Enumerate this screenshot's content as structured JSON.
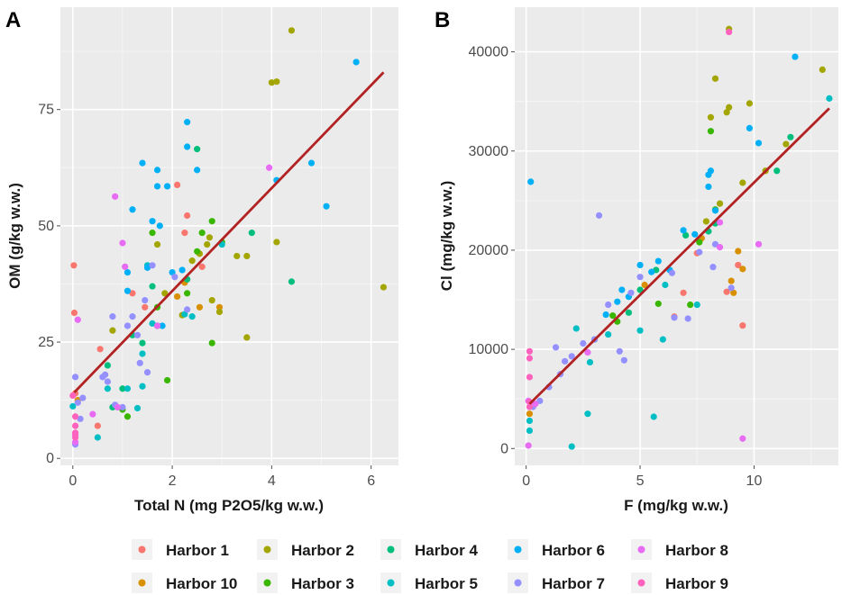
{
  "colors": {
    "Harbor 1": "#F8766D",
    "Harbor 10": "#D89000",
    "Harbor 2": "#A3A500",
    "Harbor 3": "#39B600",
    "Harbor 4": "#00BF7D",
    "Harbor 5": "#00BFC4",
    "Harbor 6": "#00B0F6",
    "Harbor 7": "#9590FF",
    "Harbor 8": "#E76BF3",
    "Harbor 9": "#FF62BC",
    "regression_line": "#B22222"
  },
  "legend": {
    "entries": [
      "Harbor 1",
      "Harbor 2",
      "Harbor 4",
      "Harbor 6",
      "Harbor 8",
      "Harbor 10",
      "Harbor 3",
      "Harbor 5",
      "Harbor 7",
      "Harbor 9"
    ]
  },
  "chart_data": [
    {
      "panel": "A",
      "type": "scatter",
      "xlabel": "Total N (mg P2O5/kg w.w.)",
      "ylabel": "OM (g/kg w.w.)",
      "xlim": [
        -0.25,
        6.55
      ],
      "ylim": [
        -1.5,
        97
      ],
      "xticks": [
        0,
        2,
        4,
        6
      ],
      "yticks": [
        0,
        25,
        50,
        75
      ],
      "grid": true,
      "regression": {
        "x": [
          0.03,
          6.25
        ],
        "y": [
          14.2,
          83
        ]
      },
      "series": [
        {
          "name": "Harbor 1",
          "points": [
            [
              0.02,
              41.5
            ],
            [
              0.03,
              31.3
            ],
            [
              0.05,
              14.0
            ],
            [
              0.55,
              23.5
            ],
            [
              1.2,
              35.5
            ],
            [
              1.45,
              32.5
            ],
            [
              2.1,
              58.8
            ],
            [
              2.25,
              48.5
            ],
            [
              2.3,
              52.2
            ],
            [
              2.6,
              41.2
            ],
            [
              0.5,
              7.0
            ]
          ]
        },
        {
          "name": "Harbor 10",
          "points": [
            [
              0.1,
              12.5
            ],
            [
              2.1,
              34.8
            ],
            [
              2.25,
              37.8
            ],
            [
              2.55,
              32.5
            ],
            [
              2.95,
              32.5
            ]
          ]
        },
        {
          "name": "Harbor 2",
          "points": [
            [
              0.8,
              27.5
            ],
            [
              1.7,
              46.0
            ],
            [
              1.85,
              35.5
            ],
            [
              2.2,
              30.8
            ],
            [
              2.4,
              42.5
            ],
            [
              2.55,
              44.0
            ],
            [
              2.7,
              46.0
            ],
            [
              2.75,
              47.5
            ],
            [
              2.8,
              34.0
            ],
            [
              2.95,
              31.5
            ],
            [
              3.3,
              43.5
            ],
            [
              3.5,
              43.5
            ],
            [
              3.5,
              26.0
            ],
            [
              4.0,
              80.8
            ],
            [
              4.1,
              81.0
            ],
            [
              4.1,
              46.5
            ],
            [
              4.4,
              92.0
            ],
            [
              6.25,
              36.8
            ]
          ]
        },
        {
          "name": "Harbor 3",
          "points": [
            [
              1.0,
              10.5
            ],
            [
              1.1,
              9.0
            ],
            [
              1.6,
              48.5
            ],
            [
              1.7,
              32.5
            ],
            [
              1.9,
              16.8
            ],
            [
              2.3,
              35.5
            ],
            [
              2.5,
              44.5
            ],
            [
              2.6,
              48.5
            ],
            [
              2.8,
              51.0
            ],
            [
              2.8,
              24.8
            ],
            [
              3.0,
              46.5
            ]
          ]
        },
        {
          "name": "Harbor 4",
          "points": [
            [
              0.7,
              20.0
            ],
            [
              0.8,
              11.0
            ],
            [
              1.0,
              15.0
            ],
            [
              1.2,
              26.5
            ],
            [
              1.4,
              24.8
            ],
            [
              1.6,
              37.0
            ],
            [
              1.7,
              28.5
            ],
            [
              2.3,
              38.5
            ],
            [
              2.5,
              66.5
            ],
            [
              3.6,
              48.5
            ],
            [
              4.4,
              38.0
            ]
          ]
        },
        {
          "name": "Harbor 5",
          "points": [
            [
              0.0,
              11.2
            ],
            [
              0.5,
              4.5
            ],
            [
              0.7,
              15.0
            ],
            [
              1.1,
              15.0
            ],
            [
              1.3,
              10.8
            ],
            [
              1.4,
              15.5
            ],
            [
              1.4,
              22.5
            ],
            [
              1.5,
              41.5
            ],
            [
              1.6,
              29.0
            ],
            [
              2.25,
              31.0
            ],
            [
              2.4,
              30.5
            ],
            [
              3.0,
              46.0
            ]
          ]
        },
        {
          "name": "Harbor 6",
          "points": [
            [
              1.1,
              36.0
            ],
            [
              1.2,
              53.5
            ],
            [
              1.4,
              63.5
            ],
            [
              1.5,
              41.0
            ],
            [
              1.6,
              51.0
            ],
            [
              1.7,
              62.0
            ],
            [
              1.75,
              50.0
            ],
            [
              1.9,
              58.5
            ],
            [
              1.8,
              28.5
            ],
            [
              2.0,
              40.0
            ],
            [
              2.2,
              40.5
            ],
            [
              2.3,
              72.3
            ],
            [
              2.3,
              67.0
            ],
            [
              2.5,
              62.0
            ],
            [
              4.1,
              59.8
            ],
            [
              4.8,
              63.5
            ],
            [
              5.1,
              54.2
            ],
            [
              5.7,
              85.2
            ],
            [
              1.7,
              58.5
            ],
            [
              1.1,
              40.0
            ]
          ]
        },
        {
          "name": "Harbor 7",
          "points": [
            [
              0.05,
              17.5
            ],
            [
              0.1,
              12.0
            ],
            [
              0.15,
              8.5
            ],
            [
              0.2,
              13.0
            ],
            [
              0.6,
              17.5
            ],
            [
              0.65,
              18.0
            ],
            [
              0.7,
              16.5
            ],
            [
              0.8,
              30.5
            ],
            [
              0.85,
              11.5
            ],
            [
              1.0,
              11.0
            ],
            [
              1.1,
              28.5
            ],
            [
              1.2,
              30.5
            ],
            [
              1.3,
              26.5
            ],
            [
              1.35,
              20.5
            ],
            [
              1.45,
              34.0
            ],
            [
              1.5,
              18.5
            ],
            [
              1.6,
              41.5
            ],
            [
              2.05,
              39.0
            ],
            [
              2.3,
              32.0
            ],
            [
              0.05,
              3.0
            ]
          ]
        },
        {
          "name": "Harbor 8",
          "points": [
            [
              0.1,
              29.8
            ],
            [
              0.05,
              5.0
            ],
            [
              0.05,
              3.5
            ],
            [
              0.4,
              9.5
            ],
            [
              0.85,
              56.3
            ],
            [
              0.9,
              11.0
            ],
            [
              1.0,
              46.3
            ],
            [
              1.05,
              41.2
            ],
            [
              1.7,
              28.5
            ],
            [
              3.95,
              62.5
            ]
          ]
        },
        {
          "name": "Harbor 9",
          "points": [
            [
              0.05,
              9.0
            ],
            [
              0.05,
              7.0
            ],
            [
              0.05,
              5.5
            ],
            [
              0.05,
              4.5
            ],
            [
              0.0,
              13.5
            ]
          ]
        }
      ]
    },
    {
      "panel": "B",
      "type": "scatter",
      "xlabel": "F (mg/kg w.w.)",
      "ylabel": "Cl (mg/kg w.w.)",
      "xlim": [
        -0.5,
        13.7
      ],
      "ylim": [
        -1700,
        44500
      ],
      "xticks": [
        0,
        5,
        10
      ],
      "yticks": [
        0,
        10000,
        20000,
        30000,
        40000
      ],
      "grid": true,
      "regression": {
        "x": [
          0.15,
          13.3
        ],
        "y": [
          4500,
          34300
        ]
      },
      "series": [
        {
          "name": "Harbor 1",
          "points": [
            [
              6.5,
              13300
            ],
            [
              6.9,
              15700
            ],
            [
              7.5,
              19700
            ],
            [
              8.8,
              15800
            ],
            [
              9.5,
              12400
            ],
            [
              9.3,
              18500
            ]
          ]
        },
        {
          "name": "Harbor 10",
          "points": [
            [
              0.15,
              3500
            ],
            [
              5.2,
              16500
            ],
            [
              7.7,
              21200
            ],
            [
              9.1,
              15700
            ],
            [
              9.3,
              19900
            ],
            [
              9.5,
              18100
            ],
            [
              9.0,
              16900
            ]
          ]
        },
        {
          "name": "Harbor 2",
          "points": [
            [
              7.9,
              22900
            ],
            [
              8.1,
              33400
            ],
            [
              8.3,
              37300
            ],
            [
              8.5,
              24700
            ],
            [
              8.8,
              33900
            ],
            [
              8.9,
              34400
            ],
            [
              8.9,
              42300
            ],
            [
              9.8,
              34800
            ],
            [
              10.5,
              28000
            ],
            [
              11.4,
              30700
            ],
            [
              13.0,
              38200
            ],
            [
              9.5,
              26800
            ]
          ]
        },
        {
          "name": "Harbor 3",
          "points": [
            [
              3.8,
              13400
            ],
            [
              4.0,
              12800
            ],
            [
              5.8,
              14600
            ],
            [
              7.2,
              14500
            ],
            [
              7.6,
              20800
            ],
            [
              8.1,
              32000
            ],
            [
              8.3,
              24100
            ]
          ]
        },
        {
          "name": "Harbor 4",
          "points": [
            [
              3.0,
              11000
            ],
            [
              4.5,
              13700
            ],
            [
              5.0,
              16000
            ],
            [
              5.7,
              18000
            ],
            [
              7.0,
              21500
            ],
            [
              8.0,
              21900
            ],
            [
              8.3,
              22700
            ],
            [
              11.0,
              28000
            ],
            [
              11.6,
              31400
            ]
          ]
        },
        {
          "name": "Harbor 5",
          "points": [
            [
              0.15,
              2800
            ],
            [
              0.15,
              1800
            ],
            [
              2.0,
              200
            ],
            [
              2.2,
              12100
            ],
            [
              2.7,
              3500
            ],
            [
              2.8,
              8700
            ],
            [
              3.6,
              11500
            ],
            [
              5.0,
              11900
            ],
            [
              5.6,
              3200
            ],
            [
              6.0,
              11000
            ],
            [
              6.1,
              16500
            ],
            [
              7.5,
              14500
            ],
            [
              13.3,
              35300
            ]
          ]
        },
        {
          "name": "Harbor 6",
          "points": [
            [
              0.2,
              26900
            ],
            [
              3.5,
              13500
            ],
            [
              4.0,
              14800
            ],
            [
              4.2,
              16000
            ],
            [
              4.5,
              15300
            ],
            [
              5.0,
              18500
            ],
            [
              5.5,
              17800
            ],
            [
              5.8,
              18900
            ],
            [
              6.3,
              18000
            ],
            [
              6.9,
              22000
            ],
            [
              7.4,
              21600
            ],
            [
              8.0,
              26400
            ],
            [
              8.0,
              27600
            ],
            [
              8.1,
              28000
            ],
            [
              9.8,
              32300
            ],
            [
              11.8,
              39500
            ],
            [
              10.2,
              30800
            ],
            [
              8.3,
              24000
            ]
          ]
        },
        {
          "name": "Harbor 7",
          "points": [
            [
              0.3,
              4200
            ],
            [
              0.6,
              4800
            ],
            [
              1.0,
              6200
            ],
            [
              1.3,
              10200
            ],
            [
              1.7,
              8800
            ],
            [
              2.0,
              9300
            ],
            [
              2.5,
              10600
            ],
            [
              3.0,
              11000
            ],
            [
              3.2,
              23500
            ],
            [
              3.6,
              14500
            ],
            [
              4.1,
              9800
            ],
            [
              4.3,
              8900
            ],
            [
              4.6,
              15700
            ],
            [
              5.0,
              17300
            ],
            [
              6.4,
              17700
            ],
            [
              6.5,
              13200
            ],
            [
              7.1,
              13100
            ],
            [
              7.6,
              19800
            ],
            [
              8.2,
              18300
            ],
            [
              8.3,
              20600
            ],
            [
              9.0,
              16200
            ],
            [
              1.5,
              7500
            ]
          ]
        },
        {
          "name": "Harbor 8",
          "points": [
            [
              0.1,
              300
            ],
            [
              0.4,
              4500
            ],
            [
              2.7,
              9700
            ],
            [
              8.5,
              20300
            ],
            [
              8.5,
              22800
            ],
            [
              9.5,
              1000
            ],
            [
              10.2,
              20600
            ],
            [
              0.1,
              4800
            ]
          ]
        },
        {
          "name": "Harbor 9",
          "points": [
            [
              0.15,
              9800
            ],
            [
              0.15,
              9100
            ],
            [
              0.15,
              7200
            ],
            [
              0.15,
              4200
            ],
            [
              8.9,
              42000
            ],
            [
              0.15,
              4700
            ]
          ]
        }
      ]
    }
  ]
}
